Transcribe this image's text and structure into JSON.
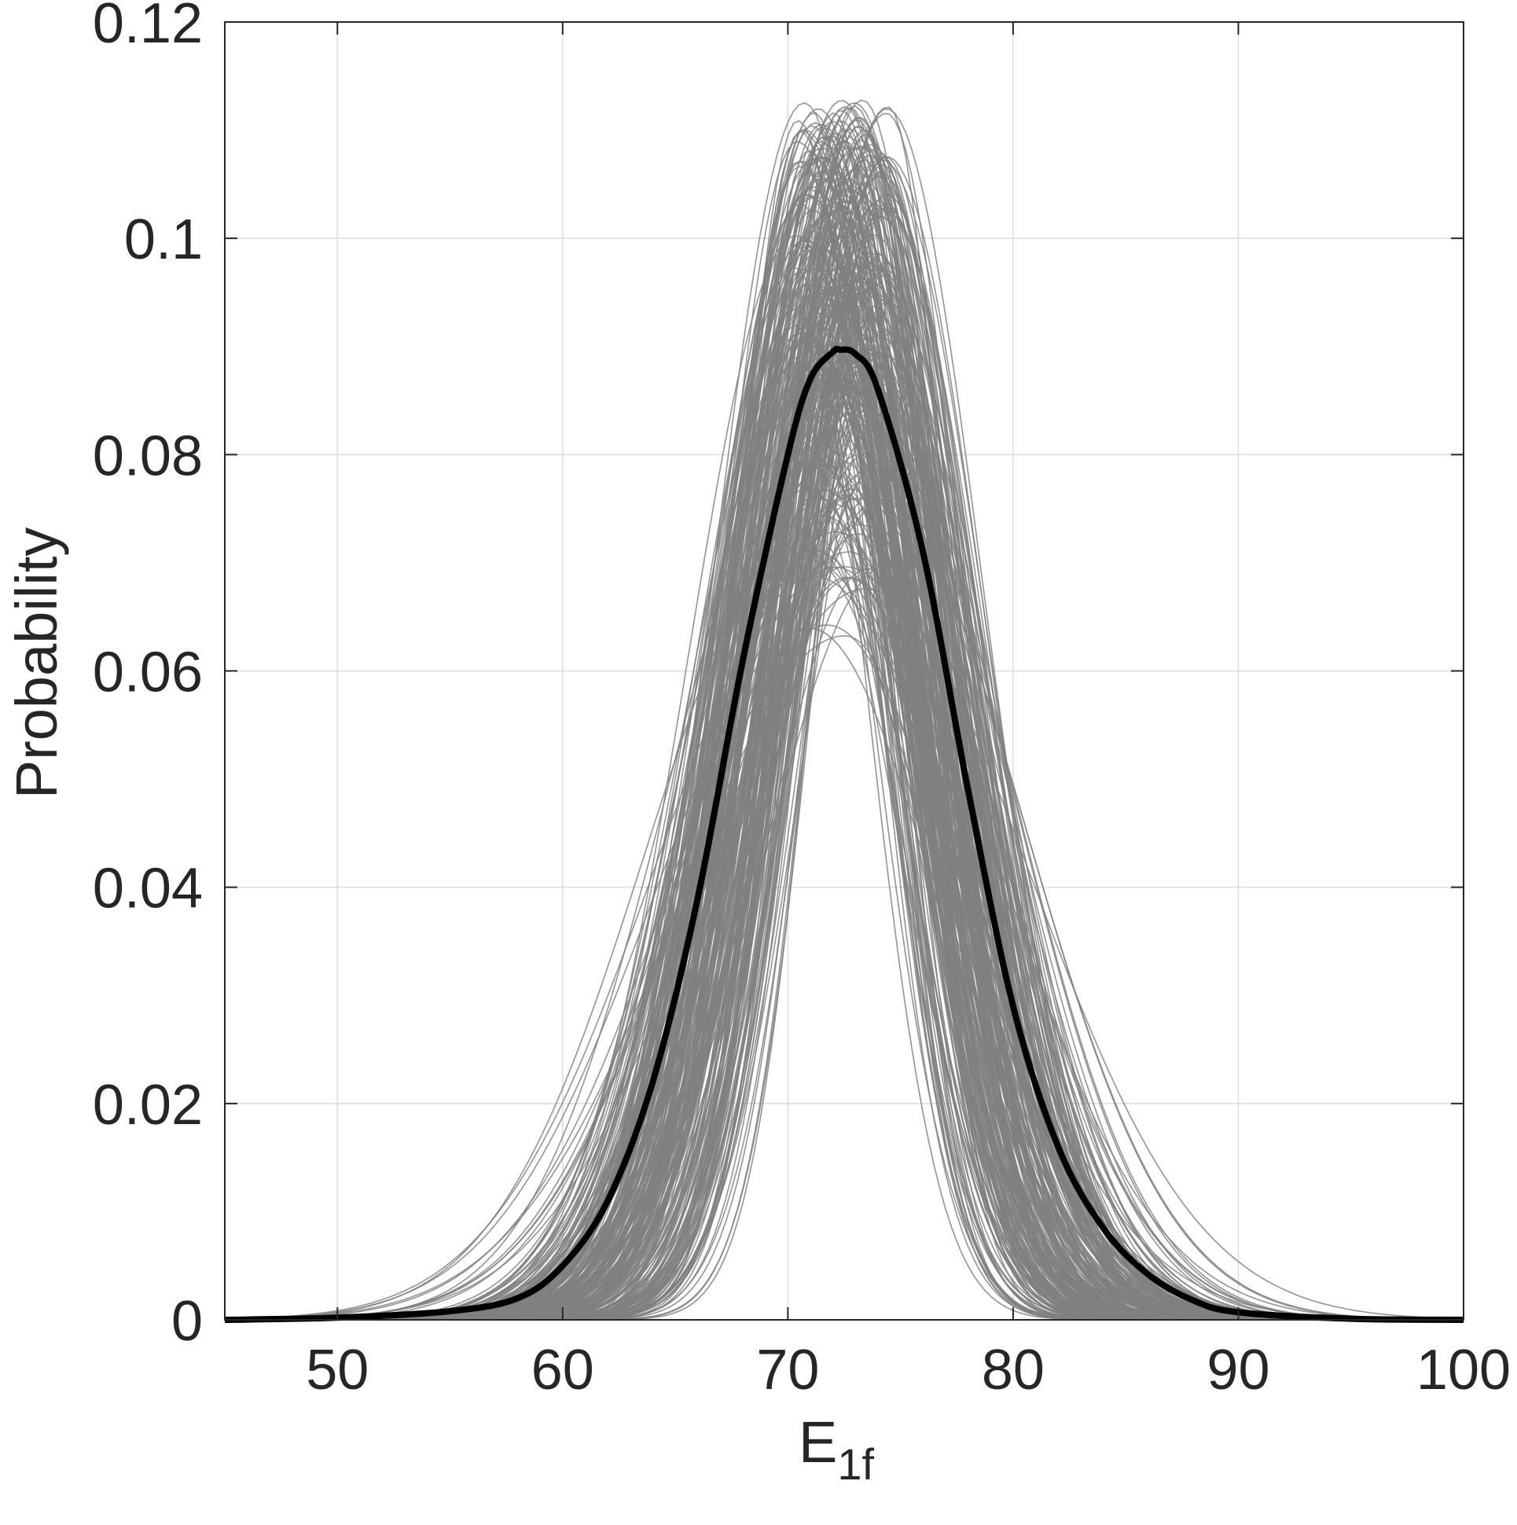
{
  "chart_data": {
    "type": "line",
    "xlabel": "E",
    "xlabel_subscript": "1f",
    "ylabel": "Probability",
    "xlim": [
      45,
      100
    ],
    "ylim": [
      0,
      0.12
    ],
    "xticks": [
      50,
      60,
      70,
      80,
      90,
      100
    ],
    "xtick_labels": [
      "50",
      "60",
      "70",
      "80",
      "90",
      "100"
    ],
    "yticks": [
      0,
      0.02,
      0.04,
      0.06,
      0.08,
      0.1,
      0.12
    ],
    "ytick_labels": [
      "0",
      "0.02",
      "0.04",
      "0.06",
      "0.08",
      "0.1",
      "0.12"
    ],
    "grid": true,
    "series": [
      {
        "role": "mean",
        "color": "#000000",
        "x": [
          45,
          50,
          55,
          58,
          60,
          62,
          64,
          66,
          68,
          70,
          71,
          72,
          72.3,
          73,
          74,
          76,
          78,
          80,
          82,
          84,
          86,
          88,
          90,
          95,
          100
        ],
        "y": [
          0.0,
          0.0002,
          0.0008,
          0.002,
          0.005,
          0.011,
          0.022,
          0.039,
          0.061,
          0.08,
          0.087,
          0.0895,
          0.0897,
          0.0893,
          0.086,
          0.071,
          0.049,
          0.029,
          0.016,
          0.0085,
          0.0042,
          0.0018,
          0.0007,
          0.0001,
          0.0
        ]
      },
      {
        "role": "samples",
        "color": "#808080",
        "count": 300,
        "peak_x_range": [
          70.3,
          74.5
        ],
        "peak_y_range": [
          0.058,
          0.113
        ]
      }
    ]
  }
}
